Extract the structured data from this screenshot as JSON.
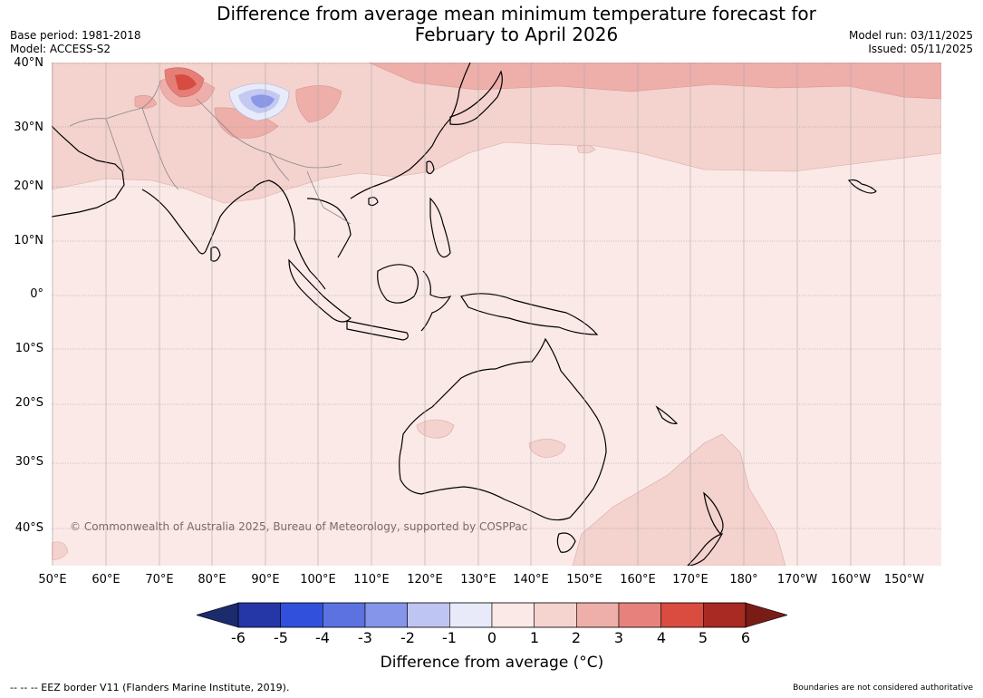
{
  "header": {
    "title_line1": "Difference from average mean minimum temperature forecast for",
    "title_line2": "February to April 2026",
    "base_period": "Base period: 1981-2018",
    "model": "Model: ACCESS-S2",
    "model_run": "Model run: 03/11/2025",
    "issued": "Issued: 05/11/2025"
  },
  "map": {
    "copyright": "© Commonwealth of Australia 2025, Bureau of Meteorology, supported by COSPPac",
    "lat_labels": [
      "40°N",
      "30°N",
      "20°N",
      "10°N",
      "0°",
      "10°S",
      "20°S",
      "30°S",
      "40°S"
    ],
    "lon_labels": [
      "50°E",
      "60°E",
      "70°E",
      "80°E",
      "90°E",
      "100°E",
      "110°E",
      "120°E",
      "130°E",
      "140°E",
      "150°E",
      "160°E",
      "170°E",
      "180°",
      "170°W",
      "160°W",
      "150°W"
    ],
    "colors": {
      "ocean_base": "#fbe9e7",
      "anom_1_2": "#f4d2ce",
      "anom_2_3": "#eeaeaa",
      "anom_3_4": "#e67e78",
      "anom_4_5": "#d84b40",
      "neg_0_1": "#e8ecfa",
      "neg_1_2": "#c3c9f2",
      "neg_2_3": "#8b98e6"
    }
  },
  "colorbar": {
    "title": "Difference from average (°C)",
    "ticks": [
      "-6",
      "-5",
      "-4",
      "-3",
      "-2",
      "-1",
      "0",
      "1",
      "2",
      "3",
      "4",
      "5",
      "6"
    ],
    "under_color": "#1c2a6e",
    "over_color": "#7a1c16",
    "bin_colors": [
      "#2537a6",
      "#3150dc",
      "#5b72e0",
      "#8595ea",
      "#bfc5f3",
      "#e8eafa",
      "#fbe9e7",
      "#f5d3cf",
      "#eeaeaa",
      "#e6827b",
      "#da4b40",
      "#a82a23"
    ]
  },
  "footer": {
    "eez": "--  --  -- EEZ border V11 (Flanders Marine Institute, 2019).",
    "disclaimer": "Boundaries are not considered authoritative"
  }
}
